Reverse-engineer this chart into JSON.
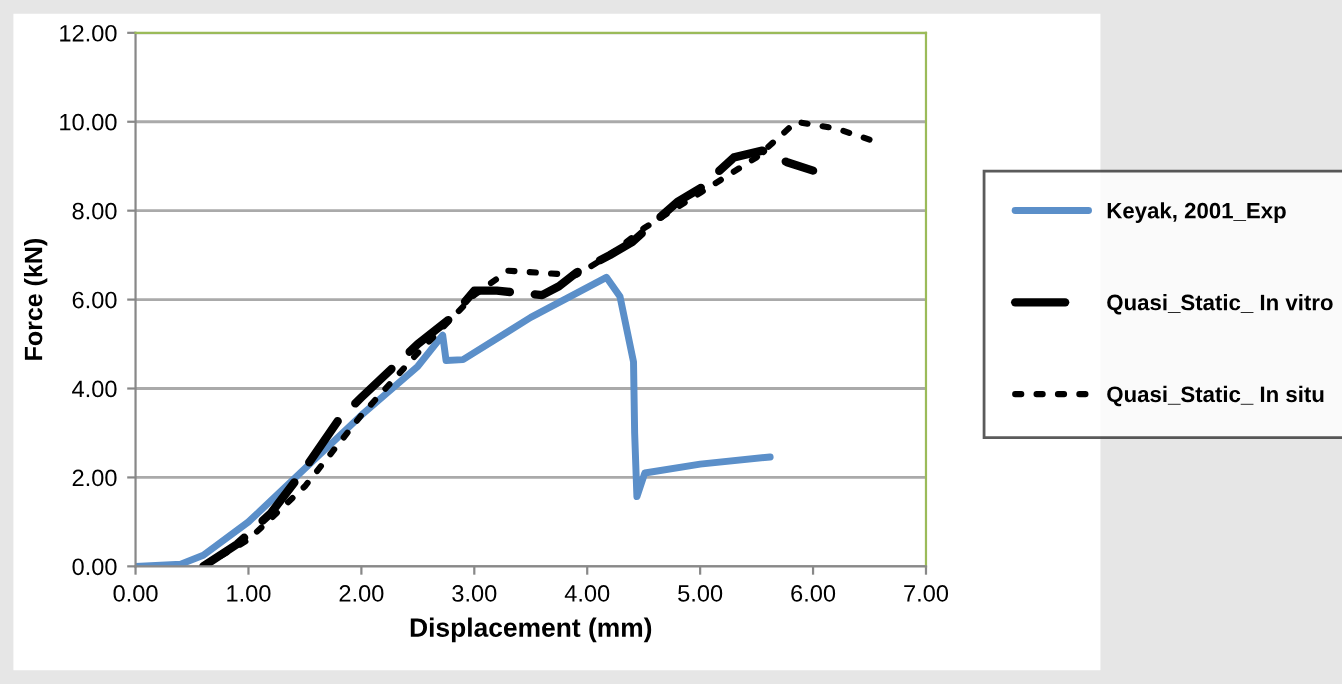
{
  "chart_data": {
    "type": "line",
    "xlabel": "Displacement (mm)",
    "ylabel": "Force (kN)",
    "xlim": [
      0,
      7
    ],
    "ylim": [
      0,
      12
    ],
    "xticks": [
      {
        "value": 0,
        "label": "0.00"
      },
      {
        "value": 1,
        "label": "1.00"
      },
      {
        "value": 2,
        "label": "2.00"
      },
      {
        "value": 3,
        "label": "3.00"
      },
      {
        "value": 4,
        "label": "4.00"
      },
      {
        "value": 5,
        "label": "5.00"
      },
      {
        "value": 6,
        "label": "6.00"
      },
      {
        "value": 7,
        "label": "7.00"
      }
    ],
    "yticks": [
      {
        "value": 0,
        "label": "0.00"
      },
      {
        "value": 2,
        "label": "2.00"
      },
      {
        "value": 4,
        "label": "4.00"
      },
      {
        "value": 6,
        "label": "6.00"
      },
      {
        "value": 8,
        "label": "8.00"
      },
      {
        "value": 10,
        "label": "10.00"
      },
      {
        "value": 12,
        "label": "12.00"
      }
    ],
    "grid": "y",
    "legend": "right",
    "series": [
      {
        "name": "Keyak, 2001_Exp",
        "color": "#5b8fc9",
        "line_style": "solid",
        "x": [
          0,
          0.4,
          0.6,
          1.0,
          1.5,
          2.0,
          2.5,
          2.72,
          2.75,
          2.9,
          3.5,
          4.17,
          4.29,
          4.41,
          4.42,
          4.44,
          4.51,
          5.0,
          5.62
        ],
        "values": [
          0,
          0.05,
          0.25,
          1.0,
          2.2,
          3.4,
          4.5,
          5.2,
          4.63,
          4.65,
          5.6,
          6.5,
          6.07,
          4.6,
          3.0,
          1.57,
          2.1,
          2.3,
          2.46
        ]
      },
      {
        "name": "Quasi_Static_ In vitro",
        "color": "#000000",
        "line_style": "dashed",
        "x": [
          0.6,
          0.9,
          1.2,
          1.5,
          1.8,
          2.0,
          2.5,
          2.8,
          3.0,
          3.2,
          3.6,
          3.75,
          3.9,
          4.2,
          4.4,
          4.8,
          5.0,
          5.3,
          5.55,
          5.77,
          6.0
        ],
        "values": [
          0,
          0.5,
          1.2,
          2.2,
          3.3,
          3.8,
          5.0,
          5.6,
          6.2,
          6.2,
          6.1,
          6.3,
          6.6,
          7.0,
          7.3,
          8.2,
          8.5,
          9.2,
          9.35,
          9.09,
          8.9
        ]
      },
      {
        "name": "Quasi_Static_ In situ",
        "color": "#000000",
        "line_style": "dotted",
        "x": [
          0.6,
          1.0,
          1.5,
          2.0,
          2.5,
          3.0,
          3.3,
          3.6,
          3.9,
          4.2,
          4.5,
          5.0,
          5.5,
          5.85,
          6.2,
          6.5
        ],
        "values": [
          0,
          0.6,
          1.8,
          3.4,
          4.8,
          6.1,
          6.65,
          6.6,
          6.55,
          7.0,
          7.6,
          8.4,
          9.2,
          10.0,
          9.85,
          9.6
        ]
      }
    ]
  }
}
